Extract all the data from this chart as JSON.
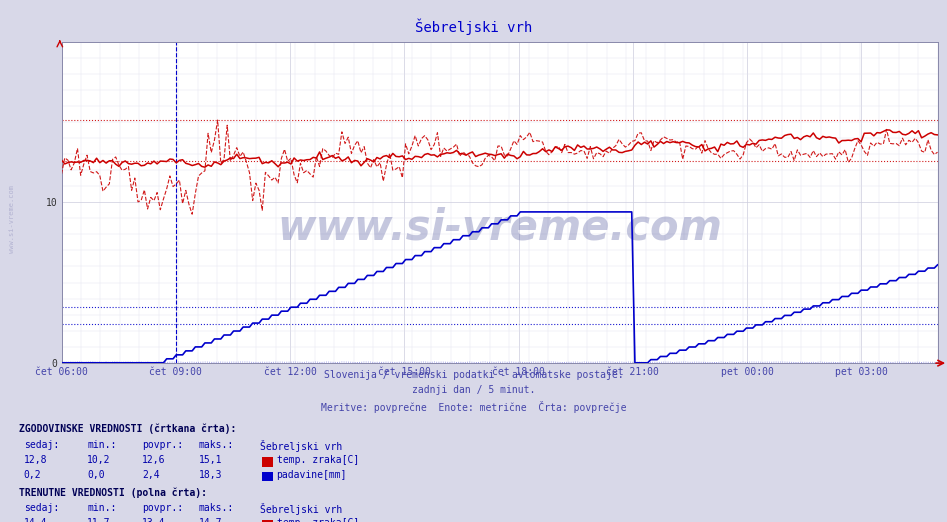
{
  "title": "Šebreljski vrh",
  "title_color": "#0000cc",
  "bg_color": "#d8d8e8",
  "plot_bg_color": "#ffffff",
  "grid_color": "#ccccdd",
  "grid_color_minor": "#e0e0ee",
  "subtitle_lines": [
    "Slovenija / vremenski podatki - avtomatske postaje.",
    "zadnji dan / 5 minut.",
    "Meritve: povprečne  Enote: metrične  Črta: povprečje"
  ],
  "subtitle_color": "#4444aa",
  "xlabel_color": "#4444aa",
  "xticklabels": [
    "čet 06:00",
    "čet 09:00",
    "čet 12:00",
    "čet 15:00",
    "čet 18:00",
    "čet 21:00",
    "pet 00:00",
    "pet 03:00"
  ],
  "xtick_positions": [
    0,
    180,
    360,
    540,
    720,
    900,
    1080,
    1260
  ],
  "ytick_labels": [
    "0",
    "10"
  ],
  "ytick_positions": [
    0,
    10
  ],
  "ylim": [
    0,
    20
  ],
  "xlim": [
    0,
    1380
  ],
  "temp_color": "#cc0000",
  "precip_color": "#0000cc",
  "ref_line_temp_high": 15.1,
  "ref_line_temp_low": 12.6,
  "ref_line_precip_high": 2.4,
  "ref_line_precip_low": 3.5,
  "vertical_line_x": 180,
  "watermark": "www.si-vreme.com",
  "watermark_color": "#1a237e",
  "side_label": "www.si-vreme.com",
  "side_label_color": "#aaaacc"
}
